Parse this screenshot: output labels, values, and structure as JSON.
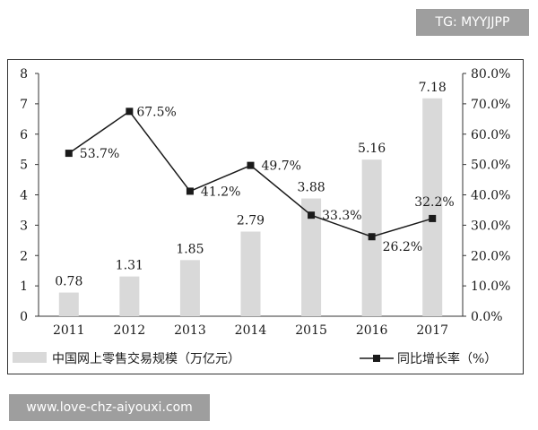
{
  "chart_data": {
    "type": "bar+line",
    "categories": [
      "2011",
      "2012",
      "2013",
      "2014",
      "2015",
      "2016",
      "2017"
    ],
    "series": [
      {
        "name": "中国网上零售交易规模（万亿元）",
        "kind": "bar",
        "axis": "left",
        "values": [
          0.78,
          1.31,
          1.85,
          2.79,
          3.88,
          5.16,
          7.18
        ],
        "labels": [
          "0.78",
          "1.31",
          "1.85",
          "2.79",
          "3.88",
          "5.16",
          "7.18"
        ]
      },
      {
        "name": "同比增长率（%）",
        "kind": "line",
        "axis": "right",
        "values": [
          53.7,
          67.5,
          41.2,
          49.7,
          33.3,
          26.2,
          32.2
        ],
        "labels": [
          "53.7%",
          "67.5%",
          "41.2%",
          "49.7%",
          "33.3%",
          "26.2%",
          "32.2%"
        ]
      }
    ],
    "left_axis": {
      "min": 0,
      "max": 8,
      "ticks": [
        "0",
        "1",
        "2",
        "3",
        "4",
        "5",
        "6",
        "7",
        "8"
      ]
    },
    "right_axis": {
      "min": 0,
      "max": 80,
      "ticks": [
        "0.0%",
        "10.0%",
        "20.0%",
        "30.0%",
        "40.0%",
        "50.0%",
        "60.0%",
        "70.0%",
        "80.0%"
      ]
    },
    "legend_position": "bottom",
    "colors": {
      "bar": "#d9d9d9",
      "line": "#1a1a1a",
      "text": "#1a1a1a",
      "axis": "#333333"
    }
  },
  "watermarks": {
    "top": "TG: MYYJJPP",
    "bottom": "www.love-chz-aiyouxi.com"
  }
}
